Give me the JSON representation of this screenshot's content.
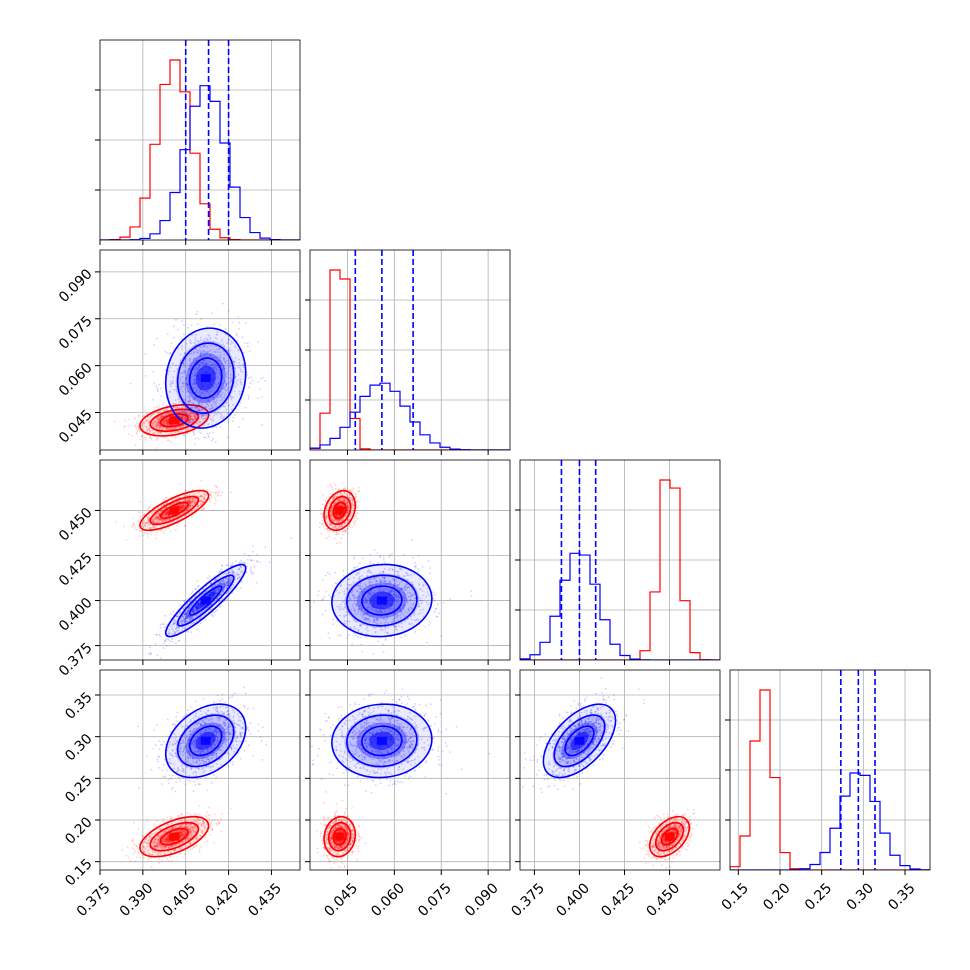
{
  "chart_data": {
    "type": "corner",
    "grid": true,
    "colors": {
      "red": "#ff0000",
      "blue": "#0000ff",
      "grid": "#b0b0b0",
      "frame": "#000000"
    },
    "parameters": [
      {
        "range": [
          0.375,
          0.445
        ],
        "ticks": [
          0.375,
          0.39,
          0.405,
          0.42,
          0.435
        ],
        "tick_labels": [
          "0.375",
          "0.390",
          "0.405",
          "0.420",
          "0.435"
        ]
      },
      {
        "range": [
          0.033,
          0.097
        ],
        "ticks": [
          0.045,
          0.06,
          0.075,
          0.09
        ],
        "tick_labels": [
          "0.045",
          "0.060",
          "0.075",
          "0.090"
        ]
      },
      {
        "range": [
          0.367,
          0.478
        ],
        "ticks": [
          0.375,
          0.4,
          0.425,
          0.45
        ],
        "tick_labels": [
          "0.375",
          "0.400",
          "0.425",
          "0.450"
        ]
      },
      {
        "range": [
          0.14,
          0.38
        ],
        "ticks": [
          0.15,
          0.2,
          0.25,
          0.3,
          0.35
        ],
        "tick_labels": [
          "0.15",
          "0.20",
          "0.25",
          "0.30",
          "0.35"
        ]
      }
    ],
    "series": [
      {
        "color": "red",
        "mean": [
          0.401,
          0.0425,
          0.45,
          0.18
        ],
        "sd": [
          0.006,
          0.0025,
          0.0055,
          0.012
        ],
        "corr": [
          [
            0,
            1,
            0.35
          ],
          [
            0,
            2,
            0.75
          ],
          [
            0,
            3,
            0.55
          ],
          [
            1,
            2,
            0.25
          ],
          [
            1,
            3,
            0.1
          ],
          [
            2,
            3,
            0.45
          ]
        ]
      },
      {
        "color": "blue",
        "mean": [
          0.412,
          0.056,
          0.4,
          0.295
        ],
        "sd": [
          0.007,
          0.008,
          0.01,
          0.022
        ],
        "corr": [
          [
            0,
            1,
            0.1
          ],
          [
            0,
            2,
            0.9
          ],
          [
            0,
            3,
            0.35
          ],
          [
            1,
            2,
            0.05
          ],
          [
            1,
            3,
            0.05
          ],
          [
            2,
            3,
            0.55
          ]
        ]
      }
    ],
    "quantile_lines": [
      [
        0.405,
        0.413,
        0.42
      ],
      [
        0.0475,
        0.056,
        0.066
      ],
      [
        0.39,
        0.4,
        0.409
      ],
      [
        0.273,
        0.294,
        0.314
      ]
    ]
  }
}
